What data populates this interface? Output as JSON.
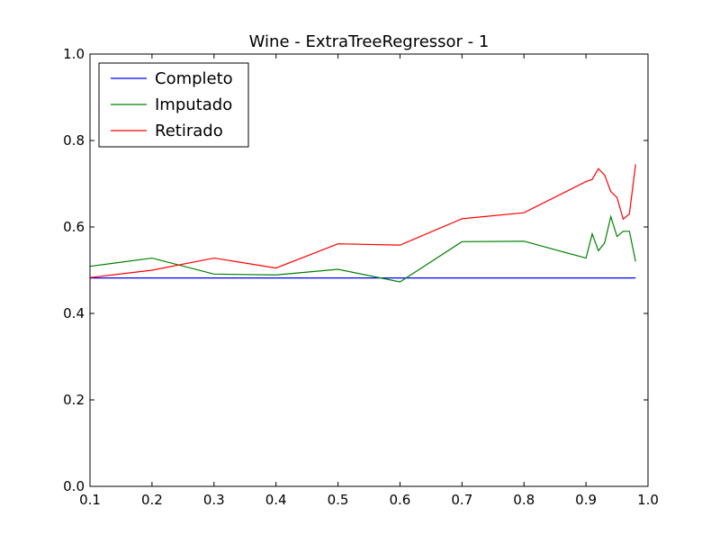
{
  "chart_data": {
    "type": "line",
    "title": "Wine - ExtraTreeRegressor - 1",
    "xlabel": "",
    "ylabel": "",
    "xlim": [
      0.1,
      1.0
    ],
    "ylim": [
      0.0,
      1.0
    ],
    "x_ticks": [
      0.1,
      0.2,
      0.3,
      0.4,
      0.5,
      0.6,
      0.7,
      0.8,
      0.9,
      1.0
    ],
    "x_tick_labels": [
      "0.1",
      "0.2",
      "0.3",
      "0.4",
      "0.5",
      "0.6",
      "0.7",
      "0.8",
      "0.9",
      "1.0"
    ],
    "y_ticks": [
      0.0,
      0.2,
      0.4,
      0.6,
      0.8,
      1.0
    ],
    "y_tick_labels": [
      "0.0",
      "0.2",
      "0.4",
      "0.6",
      "0.8",
      "1.0"
    ],
    "grid": false,
    "legend_position": "top-left",
    "series": [
      {
        "name": "Completo",
        "color": "#0000ff",
        "x": [
          0.1,
          0.98
        ],
        "y": [
          0.482,
          0.482
        ]
      },
      {
        "name": "Imputado",
        "color": "#008000",
        "x": [
          0.1,
          0.2,
          0.3,
          0.4,
          0.5,
          0.6,
          0.7,
          0.8,
          0.9,
          0.91,
          0.92,
          0.93,
          0.94,
          0.95,
          0.96,
          0.97,
          0.98
        ],
        "y": [
          0.509,
          0.528,
          0.491,
          0.489,
          0.502,
          0.473,
          0.566,
          0.567,
          0.528,
          0.584,
          0.545,
          0.563,
          0.624,
          0.578,
          0.59,
          0.59,
          0.52
        ]
      },
      {
        "name": "Retirado",
        "color": "#ff0000",
        "x": [
          0.1,
          0.2,
          0.3,
          0.4,
          0.5,
          0.6,
          0.7,
          0.8,
          0.9,
          0.91,
          0.92,
          0.93,
          0.94,
          0.95,
          0.96,
          0.97,
          0.98
        ],
        "y": [
          0.483,
          0.5,
          0.528,
          0.505,
          0.561,
          0.558,
          0.619,
          0.633,
          0.705,
          0.71,
          0.735,
          0.72,
          0.682,
          0.668,
          0.618,
          0.63,
          0.745
        ]
      }
    ]
  }
}
